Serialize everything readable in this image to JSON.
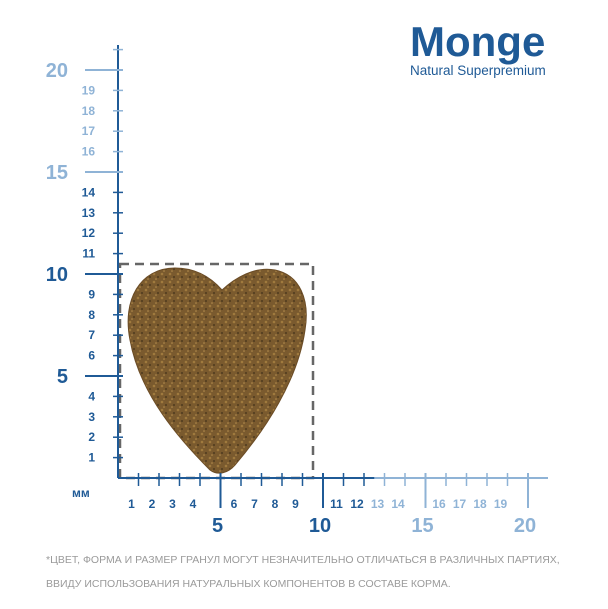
{
  "logo": {
    "brand": "Monge",
    "tagline": "Natural Superpremium"
  },
  "unit": "мм",
  "vertical_scale": {
    "dark": [
      1,
      2,
      3,
      4,
      6,
      7,
      8,
      9,
      11,
      12,
      13,
      14
    ],
    "light": [
      16,
      17,
      18,
      19
    ],
    "major_dark": [
      5,
      10
    ],
    "major_light": [
      15,
      20
    ]
  },
  "horizontal_scale": {
    "dark": [
      1,
      2,
      3,
      4,
      6,
      7,
      8,
      9,
      11,
      12
    ],
    "light": [
      13,
      14,
      16,
      17,
      18,
      19
    ],
    "major_dark": [
      5,
      10
    ],
    "major_light": [
      15,
      20
    ]
  },
  "footnote": [
    "*ЦВЕТ, ФОРМА И РАЗМЕР ГРАНУЛ МОГУТ НЕЗНАЧИТЕЛЬНО ОТЛИЧАТЬСЯ В РАЗЛИЧНЫХ ПАРТИЯХ,",
    "ВВИДУ ИСПОЛЬЗОВАНИЯ НАТУРАЛЬНЫХ КОМПОНЕНТОВ В СОСТАВЕ КОРМА."
  ]
}
